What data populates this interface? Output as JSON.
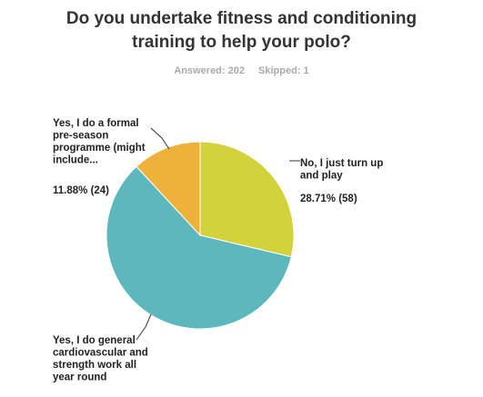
{
  "title_lines": [
    "Do you undertake fitness and conditioning",
    "training to help your polo?"
  ],
  "answered": "Answered: 202",
  "skipped": "Skipped: 1",
  "chart_data": {
    "type": "pie",
    "title": "Do you undertake fitness and conditioning training to help your polo?",
    "slices": [
      {
        "label_lines": [
          "No, I just turn up",
          "and play"
        ],
        "percent_label": "28.71% (58)",
        "value": 28.71,
        "count": 58,
        "color": "#D4D23B"
      },
      {
        "label_lines": [
          "Yes, I do general",
          "cardiovascular and",
          "strength work all",
          "year round"
        ],
        "percent_label": "",
        "value": 59.41,
        "count": 120,
        "color": "#5DB8BD"
      },
      {
        "label_lines": [
          "Yes, I do a formal",
          "pre-season",
          "programme (might",
          "include..."
        ],
        "percent_label": "11.88% (24)",
        "value": 11.88,
        "count": 24,
        "color": "#F0B13A"
      }
    ]
  }
}
